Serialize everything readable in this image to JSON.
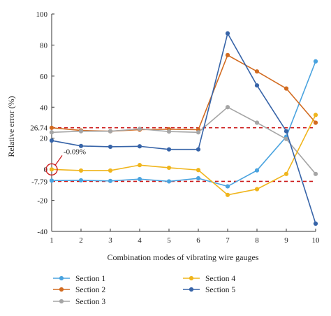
{
  "chart_data": {
    "type": "line",
    "xlabel": "Combination modes of vibrating wire gauges",
    "ylabel": "Relative error (%)",
    "x": [
      1,
      2,
      3,
      4,
      5,
      6,
      7,
      8,
      9,
      10
    ],
    "xlim": [
      1,
      10
    ],
    "ylim": [
      -40,
      100
    ],
    "yticks": [
      -40,
      -20,
      -7.79,
      0,
      20,
      26.74,
      40,
      60,
      80,
      100
    ],
    "ytick_labels": [
      "-40",
      "-20",
      "-7.79",
      "0",
      "20",
      "26.74",
      "40",
      "60",
      "80",
      "100"
    ],
    "xtick_labels": [
      "1",
      "2",
      "3",
      "4",
      "5",
      "6",
      "7",
      "8",
      "9",
      "10"
    ],
    "grid": false,
    "legend_position": "bottom",
    "reference_lines": [
      {
        "y": 26.74,
        "color": "#cc1a1a",
        "style": "dashed"
      },
      {
        "y": -7.79,
        "color": "#cc1a1a",
        "style": "dashed"
      }
    ],
    "annotation": {
      "text": "-0.09%",
      "x": 1,
      "y": -0.09,
      "color": "#cc1a1a"
    },
    "series": [
      {
        "name": "Section 1",
        "color": "#4aa3df",
        "values": [
          -7.3,
          -7.1,
          -7.5,
          -6.3,
          -7.8,
          -5.8,
          -11.0,
          -0.7,
          21.0,
          69.5
        ]
      },
      {
        "name": "Section 2",
        "color": "#d26b20",
        "values": [
          26.7,
          25.0,
          24.5,
          25.5,
          25.8,
          25.5,
          73.5,
          63.0,
          52.0,
          30.0
        ]
      },
      {
        "name": "Section 3",
        "color": "#a5a5a5",
        "values": [
          23.8,
          24.5,
          24.5,
          26.0,
          24.3,
          23.8,
          40.0,
          30.0,
          19.5,
          -3.0
        ]
      },
      {
        "name": "Section 4",
        "color": "#f0b51c",
        "values": [
          -0.09,
          -0.8,
          -0.8,
          2.7,
          1.0,
          -0.5,
          -16.5,
          -12.8,
          -3.0,
          35.0
        ]
      },
      {
        "name": "Section 5",
        "color": "#3764a8",
        "values": [
          18.5,
          15.0,
          14.5,
          14.8,
          12.8,
          12.8,
          87.5,
          54.0,
          24.5,
          -35.0
        ]
      }
    ]
  }
}
